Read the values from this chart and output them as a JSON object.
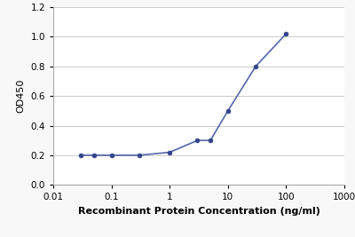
{
  "x": [
    0.03,
    0.05,
    0.1,
    0.3,
    1.0,
    3.0,
    5.0,
    10.0,
    30.0,
    100.0
  ],
  "y": [
    0.2,
    0.2,
    0.2,
    0.2,
    0.22,
    0.3,
    0.3,
    0.5,
    0.8,
    1.02
  ],
  "line_color": "#5566aa",
  "marker_color": "#33448a",
  "marker_size": 3.5,
  "line_width": 1.2,
  "xlabel": "Recombinant Protein Concentration (ng/ml)",
  "ylabel": "OD450",
  "xlim": [
    0.01,
    1000
  ],
  "ylim": [
    0.0,
    1.2
  ],
  "yticks": [
    0.0,
    0.2,
    0.4,
    0.6,
    0.8,
    1.0,
    1.2
  ],
  "xtick_values": [
    0.01,
    0.1,
    1,
    10,
    100,
    1000
  ],
  "grid_color": "#cccccc",
  "background_color": "#f8f8f8",
  "plot_bg_color": "#ffffff",
  "xlabel_fontsize": 8,
  "ylabel_fontsize": 8,
  "tick_fontsize": 7.5,
  "spine_color": "#aaaaaa"
}
